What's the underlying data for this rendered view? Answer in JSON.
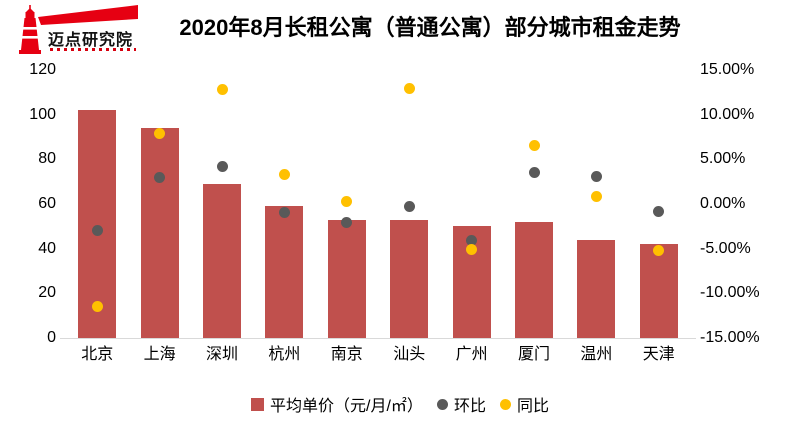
{
  "logo": {
    "name": "迈点研究院"
  },
  "title": "2020年8月长租公寓（普通公寓）部分城市租金走势",
  "chart_data": {
    "type": "bar",
    "title": "2020年8月长租公寓（普通公寓）部分城市租金走势",
    "categories": [
      "北京",
      "上海",
      "深圳",
      "杭州",
      "南京",
      "汕头",
      "广州",
      "厦门",
      "温州",
      "天津"
    ],
    "series": [
      {
        "name": "平均单价（元/月/㎡）",
        "kind": "bar",
        "axis": "left",
        "color": "#c0504d",
        "values": [
          102,
          94,
          69,
          59,
          53,
          53,
          50,
          52,
          44,
          42
        ]
      },
      {
        "name": "环比",
        "kind": "scatter",
        "axis": "right",
        "color": "#595959",
        "values": [
          -3.0,
          3.0,
          4.2,
          -0.9,
          -2.1,
          -0.3,
          -4.1,
          3.5,
          3.1,
          -0.8
        ]
      },
      {
        "name": "同比",
        "kind": "scatter",
        "axis": "right",
        "color": "#ffc000",
        "values": [
          -11.5,
          7.9,
          12.8,
          3.3,
          0.3,
          12.9,
          -5.1,
          6.6,
          0.8,
          -5.2
        ]
      }
    ],
    "left_axis": {
      "min": 0,
      "max": 120,
      "ticks": [
        "0",
        "20",
        "40",
        "60",
        "80",
        "100",
        "120"
      ]
    },
    "right_axis": {
      "min": -15,
      "max": 15,
      "ticks": [
        "-15.00%",
        "-10.00%",
        "-5.00%",
        "0.00%",
        "5.00%",
        "10.00%",
        "15.00%"
      ]
    },
    "grid": false,
    "legend_position": "bottom"
  },
  "colors": {
    "bar": "#c0504d",
    "mom_dot": "#595959",
    "yoy_dot": "#ffc000",
    "logo_red": "#e60012",
    "axis_line": "#d9d9d9"
  }
}
